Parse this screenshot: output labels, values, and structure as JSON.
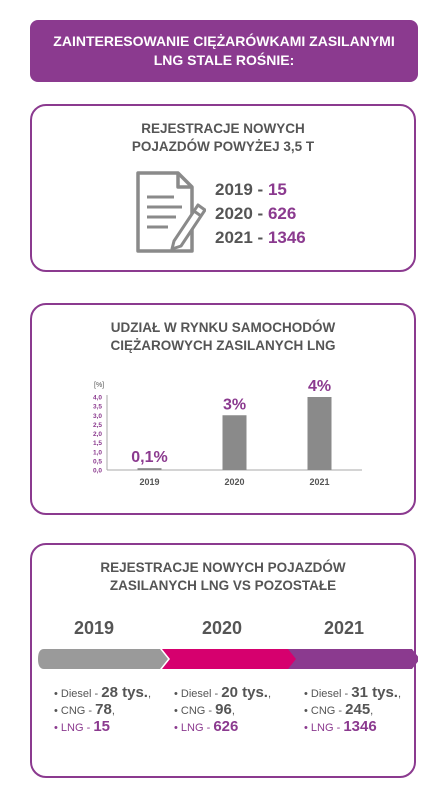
{
  "header": {
    "line1": "ZAINTERESOWANIE CIĘŻARÓWKAMI ZASILANYMI",
    "line2": "LNG STALE ROŚNIE:"
  },
  "registrations": {
    "title_line1": "REJESTRACJE NOWYCH",
    "title_line2": "POJAZDÓW POWYŻEJ 3,5 T",
    "icon": "document-edit-icon",
    "rows": [
      {
        "year": "2019",
        "sep": " - ",
        "value": "15"
      },
      {
        "year": "2020",
        "sep": " - ",
        "value": "626"
      },
      {
        "year": "2021",
        "sep": " - ",
        "value": "1346"
      }
    ]
  },
  "share": {
    "title_line1": "UDZIAŁ W RYNKU SAMOCHODÓW",
    "title_line2": "CIĘŻAROWYCH ZASILANYCH LNG"
  },
  "chart_data": {
    "type": "bar",
    "title": "UDZIAŁ W RYNKU SAMOCHODÓW CIĘŻAROWYCH ZASILANYCH LNG",
    "ylabel": "[%]",
    "categories": [
      "2019",
      "2020",
      "2021"
    ],
    "values": [
      0.1,
      3,
      4
    ],
    "data_labels": [
      "0,1%",
      "3%",
      "4%"
    ],
    "ylim": [
      0,
      4
    ],
    "yticks": [
      "0,0",
      "0,5",
      "1,0",
      "1,5",
      "2,0",
      "2,5",
      "3,0",
      "3,5",
      "4,0"
    ],
    "grid": false,
    "colors": {
      "bar": "#8a8a8a",
      "label": "#8b3a8f",
      "tick": "#8b3a8f"
    }
  },
  "comparison": {
    "title_line1": "REJESTRACJE NOWYCH POJAZDÓW",
    "title_line2": "ZASILANYCH LNG VS POZOSTAŁE",
    "years": [
      {
        "year": "2019",
        "color": "#9a9a9a",
        "diesel_label": "Diesel - ",
        "diesel_value": "28 tys.",
        "diesel_suffix": ",",
        "cng_label": "CNG - ",
        "cng_value": "78",
        "cng_suffix": ",",
        "lng_label": "LNG - ",
        "lng_value": "15"
      },
      {
        "year": "2020",
        "color": "#d6006e",
        "diesel_label": "Diesel - ",
        "diesel_value": "20 tys.",
        "diesel_suffix": ",",
        "cng_label": "CNG - ",
        "cng_value": "96",
        "cng_suffix": ",",
        "lng_label": "LNG - ",
        "lng_value": "626"
      },
      {
        "year": "2021",
        "color": "#8b3a8f",
        "diesel_label": "Diesel - ",
        "diesel_value": "31 tys.",
        "diesel_suffix": ",",
        "cng_label": "CNG - ",
        "cng_value": "245",
        "cng_suffix": ",",
        "lng_label": "LNG - ",
        "lng_value": "1346"
      }
    ]
  }
}
